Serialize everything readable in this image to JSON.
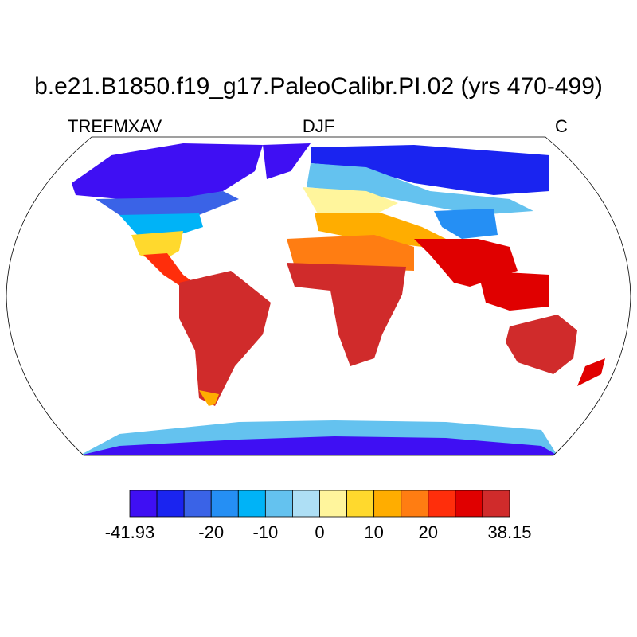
{
  "title": "b.e21.B1850.f19_g17.PaleoCalibr.PI.02 (yrs 470-499)",
  "left_label": "TREFMXAV",
  "center_label": "DJF",
  "right_label": "C",
  "colorbar": {
    "colors": [
      "#3f0ff3",
      "#1a24f0",
      "#3a63e7",
      "#258ff4",
      "#00b3f7",
      "#64c2ef",
      "#aedff5",
      "#fff59c",
      "#ffd92d",
      "#ffad00",
      "#ff7d12",
      "#ff2e0b",
      "#e00000",
      "#d02b2b"
    ],
    "tick_labels": [
      {
        "label": "-41.93",
        "boundary": 0
      },
      {
        "label": "-20",
        "boundary": 3
      },
      {
        "label": "-10",
        "boundary": 5
      },
      {
        "label": "0",
        "boundary": 7
      },
      {
        "label": "10",
        "boundary": 9
      },
      {
        "label": "20",
        "boundary": 11
      },
      {
        "label": "38.15",
        "boundary": 14
      }
    ],
    "min": -41.93,
    "max": 38.15
  },
  "map": {
    "projection": "robinson",
    "variable": "TREFMXAV",
    "season": "DJF",
    "units": "C"
  }
}
